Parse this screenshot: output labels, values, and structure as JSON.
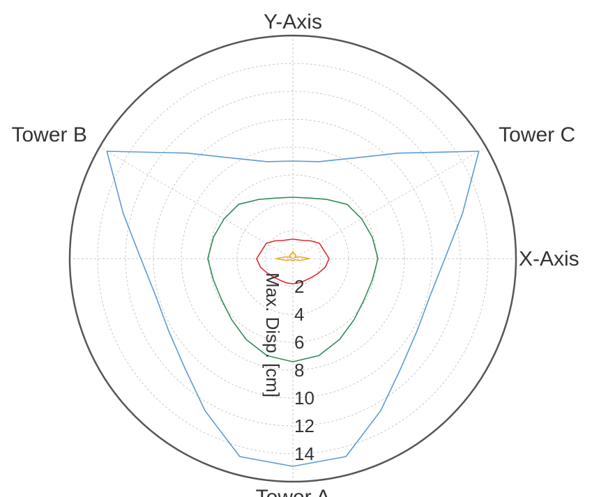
{
  "chart_data": {
    "type": "line",
    "subtype": "polar",
    "title": "",
    "radial_axis": {
      "label": "Max. Disp. [cm]",
      "ticks": [
        "2",
        "4",
        "6",
        "8",
        "10",
        "12",
        "14"
      ],
      "range": [
        0,
        16
      ],
      "grid": true
    },
    "directions": [
      {
        "label": "X-Axis",
        "angle_deg": 0
      },
      {
        "label": "Y-Axis",
        "angle_deg": 90
      },
      {
        "label": "Tower C",
        "angle_deg": 30
      },
      {
        "label": "Tower B",
        "angle_deg": 150
      },
      {
        "label": "Tower A",
        "angle_deg": 270
      }
    ],
    "angles_deg": [
      0,
      15,
      30,
      45,
      60,
      75,
      90,
      105,
      120,
      135,
      150,
      165,
      180,
      195,
      210,
      225,
      240,
      255,
      270,
      285,
      300,
      315,
      330,
      345
    ],
    "series": [
      {
        "color": "#5b9bd5",
        "values": [
          10.9,
          12.6,
          15.4,
          10.7,
          8.3,
          7.2,
          7.0,
          7.2,
          8.3,
          10.7,
          15.4,
          12.6,
          10.9,
          10.2,
          10.3,
          11.0,
          12.6,
          14.7,
          14.9,
          14.7,
          12.6,
          11.0,
          10.3,
          10.2
        ]
      },
      {
        "color": "#2e8b57",
        "values": [
          6.1,
          5.9,
          5.7,
          5.5,
          4.9,
          4.5,
          4.4,
          4.5,
          4.9,
          5.5,
          5.7,
          5.9,
          6.1,
          5.9,
          5.9,
          6.2,
          6.7,
          7.2,
          7.4,
          7.2,
          6.7,
          6.2,
          5.9,
          5.9
        ]
      },
      {
        "color": "#e02a2a",
        "values": [
          2.6,
          2.3,
          2.2,
          1.8,
          1.5,
          1.4,
          1.4,
          1.4,
          1.5,
          1.8,
          2.2,
          2.3,
          2.6,
          2.4,
          2.1,
          1.9,
          1.8,
          1.8,
          1.8,
          1.8,
          1.8,
          1.9,
          2.1,
          2.4
        ]
      },
      {
        "color": "#f5a623",
        "values": [
          1.2,
          0.5,
          0.15,
          0.3,
          0.35,
          0.35,
          0.5,
          0.35,
          0.35,
          0.3,
          0.15,
          0.5,
          1.2,
          0.5,
          0.15,
          0.15,
          0.15,
          0.15,
          0.15,
          0.15,
          0.15,
          0.15,
          0.15,
          0.5
        ]
      }
    ]
  }
}
